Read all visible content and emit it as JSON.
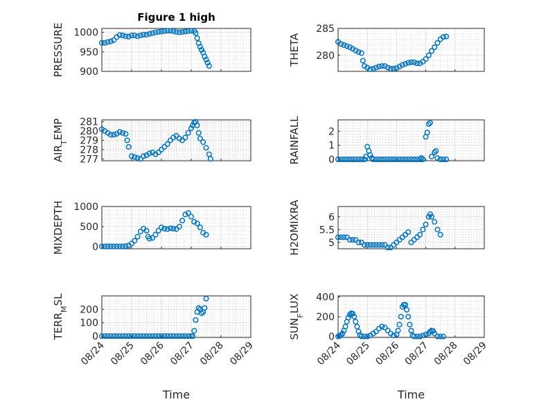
{
  "chart_data": [
    {
      "type": "scatter",
      "title": "Figure 1 high",
      "ylabel": "PRESSURE",
      "xlim": [
        "08/24",
        "08/29"
      ],
      "ylim": [
        900,
        1010
      ],
      "yticks": [
        "900",
        "950",
        "1000"
      ],
      "x_tick_labels": [],
      "xlabel": "",
      "points": [
        [
          0,
          973
        ],
        [
          0.1,
          973
        ],
        [
          0.2,
          975
        ],
        [
          0.3,
          977
        ],
        [
          0.4,
          980
        ],
        [
          0.5,
          988
        ],
        [
          0.6,
          993
        ],
        [
          0.7,
          992
        ],
        [
          0.8,
          990
        ],
        [
          0.9,
          989
        ],
        [
          1.0,
          992
        ],
        [
          1.1,
          992
        ],
        [
          1.2,
          990
        ],
        [
          1.3,
          992
        ],
        [
          1.4,
          994
        ],
        [
          1.5,
          994
        ],
        [
          1.6,
          996
        ],
        [
          1.7,
          998
        ],
        [
          1.8,
          1000
        ],
        [
          1.9,
          1001
        ],
        [
          2.0,
          1002
        ],
        [
          2.1,
          1003
        ],
        [
          2.2,
          1004
        ],
        [
          2.3,
          1004
        ],
        [
          2.4,
          1003
        ],
        [
          2.5,
          1001
        ],
        [
          2.6,
          1000
        ],
        [
          2.7,
          1001
        ],
        [
          2.8,
          1002
        ],
        [
          2.9,
          1003
        ],
        [
          3.0,
          1004
        ],
        [
          3.1,
          1003
        ],
        [
          3.15,
          998
        ],
        [
          3.2,
          985
        ],
        [
          3.25,
          972
        ],
        [
          3.3,
          963
        ],
        [
          3.35,
          955
        ],
        [
          3.4,
          948
        ],
        [
          3.45,
          938
        ],
        [
          3.5,
          930
        ],
        [
          3.55,
          922
        ],
        [
          3.6,
          914
        ]
      ]
    },
    {
      "type": "scatter",
      "ylabel": "THETA",
      "xlim": [
        "08/24",
        "08/29"
      ],
      "ylim": [
        277,
        285
      ],
      "yticks": [
        "280",
        "285"
      ],
      "x_tick_labels": [],
      "xlabel": "",
      "points": [
        [
          0,
          282.5
        ],
        [
          0.1,
          282.1
        ],
        [
          0.2,
          281.9
        ],
        [
          0.3,
          281.7
        ],
        [
          0.4,
          281.5
        ],
        [
          0.5,
          281.2
        ],
        [
          0.6,
          280.9
        ],
        [
          0.7,
          280.6
        ],
        [
          0.8,
          280.4
        ],
        [
          0.85,
          279.0
        ],
        [
          0.9,
          278.0
        ],
        [
          1.0,
          277.7
        ],
        [
          1.1,
          277.4
        ],
        [
          1.2,
          277.5
        ],
        [
          1.3,
          277.7
        ],
        [
          1.4,
          277.9
        ],
        [
          1.5,
          278.0
        ],
        [
          1.6,
          278.0
        ],
        [
          1.7,
          277.7
        ],
        [
          1.8,
          277.5
        ],
        [
          1.9,
          277.5
        ],
        [
          2.0,
          277.6
        ],
        [
          2.1,
          277.9
        ],
        [
          2.2,
          278.2
        ],
        [
          2.3,
          278.4
        ],
        [
          2.4,
          278.6
        ],
        [
          2.5,
          278.7
        ],
        [
          2.6,
          278.7
        ],
        [
          2.7,
          278.5
        ],
        [
          2.8,
          278.5
        ],
        [
          2.9,
          278.8
        ],
        [
          3.0,
          279.3
        ],
        [
          3.1,
          280.0
        ],
        [
          3.2,
          280.8
        ],
        [
          3.3,
          281.5
        ],
        [
          3.4,
          282.3
        ],
        [
          3.5,
          283.0
        ],
        [
          3.6,
          283.4
        ],
        [
          3.7,
          283.5
        ]
      ]
    },
    {
      "type": "scatter",
      "ylabel": "AIR_TEMP",
      "ylabel_main": "AIR",
      "ylabel_sub": "T",
      "ylabel_rest": "EMP",
      "xlim": [
        "08/24",
        "08/29"
      ],
      "ylim": [
        276.8,
        281.2
      ],
      "yticks": [
        "277",
        "278",
        "279",
        "280",
        "281"
      ],
      "x_tick_labels": [],
      "xlabel": "",
      "points": [
        [
          0,
          280.2
        ],
        [
          0.1,
          280.0
        ],
        [
          0.2,
          279.8
        ],
        [
          0.3,
          279.6
        ],
        [
          0.4,
          279.6
        ],
        [
          0.5,
          279.7
        ],
        [
          0.6,
          279.9
        ],
        [
          0.7,
          279.8
        ],
        [
          0.8,
          279.7
        ],
        [
          0.85,
          279.0
        ],
        [
          0.9,
          278.3
        ],
        [
          1.0,
          277.3
        ],
        [
          1.1,
          277.2
        ],
        [
          1.2,
          277.1
        ],
        [
          1.3,
          277.0
        ],
        [
          1.4,
          277.3
        ],
        [
          1.5,
          277.4
        ],
        [
          1.6,
          277.6
        ],
        [
          1.7,
          277.7
        ],
        [
          1.8,
          277.5
        ],
        [
          1.9,
          277.7
        ],
        [
          2.0,
          278.0
        ],
        [
          2.1,
          278.3
        ],
        [
          2.2,
          278.6
        ],
        [
          2.3,
          279.0
        ],
        [
          2.4,
          279.3
        ],
        [
          2.5,
          279.5
        ],
        [
          2.6,
          279.2
        ],
        [
          2.7,
          279.0
        ],
        [
          2.8,
          279.3
        ],
        [
          2.9,
          279.8
        ],
        [
          3.0,
          280.3
        ],
        [
          3.05,
          280.6
        ],
        [
          3.1,
          280.9
        ],
        [
          3.15,
          281.0
        ],
        [
          3.2,
          280.6
        ],
        [
          3.25,
          279.8
        ],
        [
          3.3,
          279.2
        ],
        [
          3.4,
          278.8
        ],
        [
          3.5,
          278.2
        ],
        [
          3.6,
          277.5
        ],
        [
          3.65,
          277.0
        ]
      ]
    },
    {
      "type": "scatter",
      "ylabel": "RAINFALL",
      "xlim": [
        "08/24",
        "08/29"
      ],
      "ylim": [
        -0.1,
        2.8
      ],
      "yticks": [
        "0",
        "1",
        "2"
      ],
      "x_tick_labels": [],
      "xlabel": "",
      "points": [
        [
          0,
          0
        ],
        [
          0.1,
          0
        ],
        [
          0.2,
          0
        ],
        [
          0.3,
          0
        ],
        [
          0.4,
          0
        ],
        [
          0.5,
          0
        ],
        [
          0.6,
          0
        ],
        [
          0.7,
          0
        ],
        [
          0.8,
          0
        ],
        [
          0.9,
          0
        ],
        [
          0.95,
          0.2
        ],
        [
          1.0,
          0.9
        ],
        [
          1.05,
          0.6
        ],
        [
          1.1,
          0.3
        ],
        [
          1.15,
          0.1
        ],
        [
          1.2,
          0
        ],
        [
          1.3,
          0
        ],
        [
          1.4,
          0
        ],
        [
          1.5,
          0
        ],
        [
          1.6,
          0
        ],
        [
          1.7,
          0
        ],
        [
          1.8,
          0
        ],
        [
          1.9,
          0
        ],
        [
          2.0,
          0
        ],
        [
          2.1,
          0
        ],
        [
          2.2,
          0
        ],
        [
          2.3,
          0
        ],
        [
          2.4,
          0
        ],
        [
          2.5,
          0
        ],
        [
          2.6,
          0
        ],
        [
          2.7,
          0
        ],
        [
          2.8,
          0
        ],
        [
          2.85,
          0.1
        ],
        [
          2.9,
          0
        ],
        [
          3.0,
          1.6
        ],
        [
          3.05,
          1.9
        ],
        [
          3.1,
          2.5
        ],
        [
          3.15,
          2.6
        ],
        [
          3.2,
          0.2
        ],
        [
          3.3,
          0.5
        ],
        [
          3.35,
          0.6
        ],
        [
          3.4,
          0.1
        ],
        [
          3.5,
          0
        ],
        [
          3.6,
          0
        ],
        [
          3.7,
          0
        ]
      ]
    },
    {
      "type": "scatter",
      "ylabel": "MIXDEPTH",
      "xlim": [
        "08/24",
        "08/29"
      ],
      "ylim": [
        -50,
        1000
      ],
      "yticks": [
        "0",
        "500",
        "1000"
      ],
      "x_tick_labels": [],
      "xlabel": "",
      "points": [
        [
          0,
          10
        ],
        [
          0.1,
          10
        ],
        [
          0.2,
          10
        ],
        [
          0.3,
          10
        ],
        [
          0.4,
          10
        ],
        [
          0.5,
          10
        ],
        [
          0.6,
          10
        ],
        [
          0.7,
          10
        ],
        [
          0.8,
          15
        ],
        [
          0.9,
          30
        ],
        [
          1.0,
          80
        ],
        [
          1.1,
          150
        ],
        [
          1.2,
          250
        ],
        [
          1.3,
          380
        ],
        [
          1.4,
          450
        ],
        [
          1.5,
          400
        ],
        [
          1.55,
          250
        ],
        [
          1.6,
          200
        ],
        [
          1.7,
          220
        ],
        [
          1.8,
          300
        ],
        [
          1.9,
          400
        ],
        [
          2.0,
          480
        ],
        [
          2.1,
          450
        ],
        [
          2.2,
          440
        ],
        [
          2.3,
          460
        ],
        [
          2.4,
          450
        ],
        [
          2.5,
          440
        ],
        [
          2.6,
          500
        ],
        [
          2.7,
          650
        ],
        [
          2.8,
          800
        ],
        [
          2.9,
          840
        ],
        [
          3.0,
          750
        ],
        [
          3.1,
          620
        ],
        [
          3.2,
          580
        ],
        [
          3.3,
          480
        ],
        [
          3.4,
          350
        ],
        [
          3.5,
          300
        ]
      ]
    },
    {
      "type": "scatter",
      "ylabel": "H2OMIXRA",
      "xlim": [
        "08/24",
        "08/29"
      ],
      "ylim": [
        4.75,
        6.4
      ],
      "yticks": [
        "5",
        "5.5",
        "6"
      ],
      "x_tick_labels": [],
      "xlabel": "",
      "points": [
        [
          0,
          5.2
        ],
        [
          0.1,
          5.2
        ],
        [
          0.2,
          5.2
        ],
        [
          0.3,
          5.2
        ],
        [
          0.4,
          5.1
        ],
        [
          0.5,
          5.1
        ],
        [
          0.6,
          5.1
        ],
        [
          0.7,
          5.0
        ],
        [
          0.8,
          5.0
        ],
        [
          0.9,
          4.9
        ],
        [
          1.0,
          4.9
        ],
        [
          1.1,
          4.9
        ],
        [
          1.2,
          4.9
        ],
        [
          1.3,
          4.9
        ],
        [
          1.4,
          4.9
        ],
        [
          1.5,
          4.9
        ],
        [
          1.6,
          4.9
        ],
        [
          1.7,
          4.8
        ],
        [
          1.8,
          4.8
        ],
        [
          1.9,
          4.9
        ],
        [
          2.0,
          5.0
        ],
        [
          2.1,
          5.1
        ],
        [
          2.2,
          5.2
        ],
        [
          2.3,
          5.3
        ],
        [
          2.4,
          5.4
        ],
        [
          2.5,
          5.0
        ],
        [
          2.6,
          5.1
        ],
        [
          2.7,
          5.2
        ],
        [
          2.8,
          5.3
        ],
        [
          2.9,
          5.5
        ],
        [
          3.0,
          5.7
        ],
        [
          3.1,
          6.0
        ],
        [
          3.15,
          6.1
        ],
        [
          3.2,
          6.0
        ],
        [
          3.3,
          5.8
        ],
        [
          3.4,
          5.5
        ],
        [
          3.5,
          5.3
        ]
      ]
    },
    {
      "type": "scatter",
      "ylabel": "TERR_MSL",
      "ylabel_main": "TERR",
      "ylabel_sub": "M",
      "ylabel_rest": "SL",
      "xlim": [
        "08/24",
        "08/29"
      ],
      "ylim": [
        -10,
        300
      ],
      "yticks": [
        "0",
        "100",
        "200"
      ],
      "x_tick_labels": [
        "08/24",
        "08/25",
        "08/26",
        "08/27",
        "08/28",
        "08/29"
      ],
      "xlabel": "Time",
      "points": [
        [
          0,
          0
        ],
        [
          0.1,
          0
        ],
        [
          0.2,
          0
        ],
        [
          0.3,
          0
        ],
        [
          0.4,
          0
        ],
        [
          0.5,
          0
        ],
        [
          0.6,
          0
        ],
        [
          0.7,
          0
        ],
        [
          0.8,
          0
        ],
        [
          0.9,
          0
        ],
        [
          1.0,
          0
        ],
        [
          1.1,
          0
        ],
        [
          1.2,
          0
        ],
        [
          1.3,
          0
        ],
        [
          1.4,
          0
        ],
        [
          1.5,
          0
        ],
        [
          1.6,
          0
        ],
        [
          1.7,
          0
        ],
        [
          1.8,
          0
        ],
        [
          1.9,
          0
        ],
        [
          2.0,
          0
        ],
        [
          2.1,
          0
        ],
        [
          2.2,
          0
        ],
        [
          2.3,
          0
        ],
        [
          2.4,
          0
        ],
        [
          2.5,
          0
        ],
        [
          2.6,
          0
        ],
        [
          2.7,
          0
        ],
        [
          2.8,
          0
        ],
        [
          2.9,
          0
        ],
        [
          3.0,
          0
        ],
        [
          3.05,
          0
        ],
        [
          3.1,
          40
        ],
        [
          3.15,
          120
        ],
        [
          3.2,
          180
        ],
        [
          3.25,
          210
        ],
        [
          3.3,
          200
        ],
        [
          3.35,
          170
        ],
        [
          3.4,
          180
        ],
        [
          3.45,
          210
        ],
        [
          3.5,
          280
        ]
      ]
    },
    {
      "type": "scatter",
      "ylabel": "SUN_FLUX",
      "ylabel_main": "SUN",
      "ylabel_sub": "F",
      "ylabel_rest": "LUX",
      "xlim": [
        "08/24",
        "08/29"
      ],
      "ylim": [
        -10,
        410
      ],
      "yticks": [
        "0",
        "200",
        "400"
      ],
      "x_tick_labels": [
        "08/24",
        "08/25",
        "08/26",
        "08/27",
        "08/28",
        "08/29"
      ],
      "xlabel": "Time",
      "points": [
        [
          0,
          0
        ],
        [
          0.05,
          5
        ],
        [
          0.1,
          15
        ],
        [
          0.15,
          30
        ],
        [
          0.2,
          60
        ],
        [
          0.25,
          100
        ],
        [
          0.3,
          150
        ],
        [
          0.35,
          190
        ],
        [
          0.4,
          220
        ],
        [
          0.45,
          235
        ],
        [
          0.5,
          230
        ],
        [
          0.55,
          200
        ],
        [
          0.6,
          150
        ],
        [
          0.65,
          100
        ],
        [
          0.7,
          50
        ],
        [
          0.75,
          15
        ],
        [
          0.8,
          0
        ],
        [
          0.9,
          0
        ],
        [
          1.0,
          0
        ],
        [
          1.1,
          10
        ],
        [
          1.2,
          30
        ],
        [
          1.3,
          50
        ],
        [
          1.4,
          80
        ],
        [
          1.5,
          100
        ],
        [
          1.6,
          90
        ],
        [
          1.7,
          60
        ],
        [
          1.8,
          30
        ],
        [
          1.9,
          10
        ],
        [
          2.0,
          20
        ],
        [
          2.05,
          60
        ],
        [
          2.1,
          120
        ],
        [
          2.15,
          200
        ],
        [
          2.2,
          300
        ],
        [
          2.25,
          320
        ],
        [
          2.3,
          320
        ],
        [
          2.35,
          270
        ],
        [
          2.4,
          200
        ],
        [
          2.45,
          120
        ],
        [
          2.5,
          60
        ],
        [
          2.55,
          10
        ],
        [
          2.6,
          0
        ],
        [
          2.7,
          0
        ],
        [
          2.8,
          0
        ],
        [
          2.9,
          10
        ],
        [
          3.0,
          20
        ],
        [
          3.1,
          30
        ],
        [
          3.15,
          50
        ],
        [
          3.2,
          60
        ],
        [
          3.25,
          55
        ],
        [
          3.3,
          30
        ],
        [
          3.4,
          0
        ],
        [
          3.5,
          0
        ],
        [
          3.6,
          0
        ]
      ]
    }
  ],
  "colors": {
    "marker": "#0072BD",
    "axis": "#262626",
    "grid": "#dfdfdf"
  }
}
